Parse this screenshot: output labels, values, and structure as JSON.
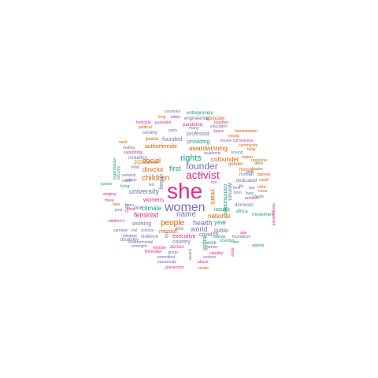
{
  "palette": {
    "teal": "#1b9e77",
    "orange": "#d95f02",
    "purple": "#7570b3",
    "magenta": "#e7298a"
  },
  "words": [
    {
      "text": "she",
      "color": "magenta"
    },
    {
      "text": "women",
      "color": "purple"
    },
    {
      "text": "activist",
      "color": "magenta"
    },
    {
      "text": "founder",
      "color": "purple"
    },
    {
      "text": "rights",
      "color": "teal"
    },
    {
      "text": "children",
      "color": "orange"
    },
    {
      "text": "people",
      "color": "orange"
    },
    {
      "text": "name",
      "color": "purple"
    },
    {
      "text": "feminist",
      "color": "magenta"
    },
    {
      "text": "university",
      "color": "purple"
    },
    {
      "text": "social",
      "color": "orange"
    },
    {
      "text": "first",
      "color": "teal"
    },
    {
      "text": "director",
      "color": "orange"
    },
    {
      "text": "world",
      "color": "purple"
    },
    {
      "text": "health",
      "color": "purple"
    },
    {
      "text": "awardwinning",
      "color": "orange"
    },
    {
      "text": "cofounder",
      "color": "orange"
    },
    {
      "text": "national",
      "color": "orange"
    },
    {
      "text": "climate",
      "color": "teal"
    },
    {
      "text": "years",
      "color": "orange"
    },
    {
      "text": "year",
      "color": "teal"
    },
    {
      "text": "providing",
      "color": "teal"
    },
    {
      "text": "executive",
      "color": "magenta"
    },
    {
      "text": "public",
      "color": "purple"
    },
    {
      "text": "mission",
      "color": "orange"
    },
    {
      "text": "working",
      "color": "purple"
    },
    {
      "text": "communities",
      "color": "teal"
    },
    {
      "text": "professor",
      "color": "purple"
    },
    {
      "text": "authorfemale",
      "color": "orange"
    },
    {
      "text": "began",
      "color": "purple"
    },
    {
      "text": "womens",
      "color": "magenta"
    },
    {
      "text": "founded",
      "color": "purple"
    },
    {
      "text": "covid19",
      "color": "purple"
    },
    {
      "text": "issues",
      "color": "teal"
    },
    {
      "text": "global",
      "color": "teal"
    },
    {
      "text": "country",
      "color": "purple"
    },
    {
      "text": "woman",
      "color": "purple"
    },
    {
      "text": "one",
      "color": "purple"
    },
    {
      "text": "gender",
      "color": "orange"
    },
    {
      "text": "also",
      "color": "purple"
    },
    {
      "text": "violence",
      "color": "purple"
    },
    {
      "text": "disability",
      "color": "purple"
    },
    {
      "text": "including",
      "color": "purple"
    },
    {
      "text": "peace",
      "color": "orange"
    },
    {
      "text": "new",
      "color": "purple"
    },
    {
      "text": "2020career",
      "color": "orange"
    },
    {
      "text": "human",
      "color": "purple"
    },
    {
      "text": "history",
      "color": "orange"
    },
    {
      "text": "dedicated",
      "color": "purple"
    },
    {
      "text": "domestic",
      "color": "purple"
    },
    {
      "text": "work",
      "color": "teal"
    },
    {
      "text": "across",
      "color": "magenta"
    },
    {
      "text": "africa",
      "color": "teal"
    },
    {
      "text": "movement",
      "color": "teal"
    },
    {
      "text": "society",
      "color": "purple"
    },
    {
      "text": "pandemic",
      "color": "magenta"
    },
    {
      "text": "advocate",
      "color": "orange"
    },
    {
      "text": "engineering",
      "color": "purple"
    },
    {
      "text": "entrepreneur",
      "color": "teal"
    },
    {
      "text": "countries",
      "color": "purple"
    },
    {
      "text": "journalist",
      "color": "magenta"
    },
    {
      "text": "femicide",
      "color": "magenta"
    },
    {
      "text": "political",
      "color": "orange"
    },
    {
      "text": "long",
      "color": "orange"
    },
    {
      "text": "when",
      "color": "magenta"
    },
    {
      "text": "education",
      "color": "purple"
    },
    {
      "text": "together",
      "color": "magenta"
    },
    {
      "text": "many",
      "color": "purple"
    },
    {
      "text": "party",
      "color": "purple"
    },
    {
      "text": "space",
      "color": "magenta"
    },
    {
      "text": "young",
      "color": "orange"
    },
    {
      "text": "humanitarian",
      "color": "orange"
    },
    {
      "text": "coronavirus",
      "color": "magenta"
    },
    {
      "text": "community",
      "color": "orange"
    },
    {
      "text": "went",
      "color": "orange"
    },
    {
      "text": "ending",
      "color": "purple"
    },
    {
      "text": "supporting",
      "color": "magenta"
    },
    {
      "text": "organisation",
      "color": "teal"
    },
    {
      "text": "security",
      "color": "teal"
    },
    {
      "text": "network",
      "color": "purple"
    },
    {
      "text": "school",
      "color": "purple"
    },
    {
      "text": "made",
      "color": "purple"
    },
    {
      "text": "justice",
      "color": "teal"
    },
    {
      "text": "living",
      "color": "teal"
    },
    {
      "text": "singing",
      "color": "magenta"
    },
    {
      "text": "three",
      "color": "magenta"
    },
    {
      "text": "take",
      "color": "orange"
    },
    {
      "text": "post",
      "color": "purple"
    },
    {
      "text": "films",
      "color": "magenta"
    },
    {
      "text": "2019",
      "color": "purple"
    },
    {
      "text": "children's",
      "color": "magenta"
    },
    {
      "text": "zambian",
      "color": "purple"
    },
    {
      "text": "civil",
      "color": "purple"
    },
    {
      "text": "science",
      "color": "purple"
    },
    {
      "text": "initiative",
      "color": "purple"
    },
    {
      "text": "environmental",
      "color": "purple"
    },
    {
      "text": "emerged",
      "color": "purple"
    },
    {
      "text": "minister",
      "color": "magenta"
    },
    {
      "text": "filmmaker",
      "color": "magenta"
    },
    {
      "text": "committed",
      "color": "purple"
    },
    {
      "text": "passionate",
      "color": "purple"
    },
    {
      "text": "grassroots",
      "color": "magenta"
    },
    {
      "text": "group",
      "color": "purple"
    },
    {
      "text": "award",
      "color": "purple"
    },
    {
      "text": "antrees",
      "color": "purple"
    },
    {
      "text": "equality",
      "color": "magenta"
    },
    {
      "text": "abuse",
      "color": "magenta"
    },
    {
      "text": "centre",
      "color": "orange"
    },
    {
      "text": "former",
      "color": "magenta"
    },
    {
      "text": "scientist",
      "color": "teal"
    },
    {
      "text": "change",
      "color": "teal"
    },
    {
      "text": "foundation",
      "color": "purple"
    },
    {
      "text": "now",
      "color": "teal"
    },
    {
      "text": "age",
      "color": "magenta"
    },
    {
      "text": "appear",
      "color": "teal"
    },
    {
      "text": "white",
      "color": "magenta"
    },
    {
      "text": "marginalised",
      "color": "magenta"
    },
    {
      "text": "crisis",
      "color": "orange"
    },
    {
      "text": "child",
      "color": "orange"
    },
    {
      "text": "parents",
      "color": "orange"
    },
    {
      "text": "south",
      "color": "orange"
    },
    {
      "text": "darts",
      "color": "teal"
    },
    {
      "text": "girls",
      "color": "purple"
    },
    {
      "text": "leader",
      "color": "orange"
    },
    {
      "text": "activists",
      "color": "magenta"
    },
    {
      "text": "response",
      "color": "orange"
    },
    {
      "text": "matter",
      "color": "orange"
    },
    {
      "text": "fang",
      "color": "orange"
    },
    {
      "text": "around",
      "color": "purple"
    },
    {
      "text": "known",
      "color": "purple"
    },
    {
      "text": "academic",
      "color": "purple"
    },
    {
      "text": "lives",
      "color": "teal"
    },
    {
      "text": "born",
      "color": "purple"
    },
    {
      "text": "time",
      "color": "purple"
    },
    {
      "text": "life",
      "color": "purple"
    },
    {
      "text": "law",
      "color": "purple"
    },
    {
      "text": "create",
      "color": "purple"
    },
    {
      "text": "two",
      "color": "purple"
    },
    {
      "text": "set",
      "color": "purple"
    },
    {
      "text": "led",
      "color": "purple"
    },
    {
      "text": "been",
      "color": "purple"
    },
    {
      "text": "this",
      "color": "purple"
    }
  ]
}
